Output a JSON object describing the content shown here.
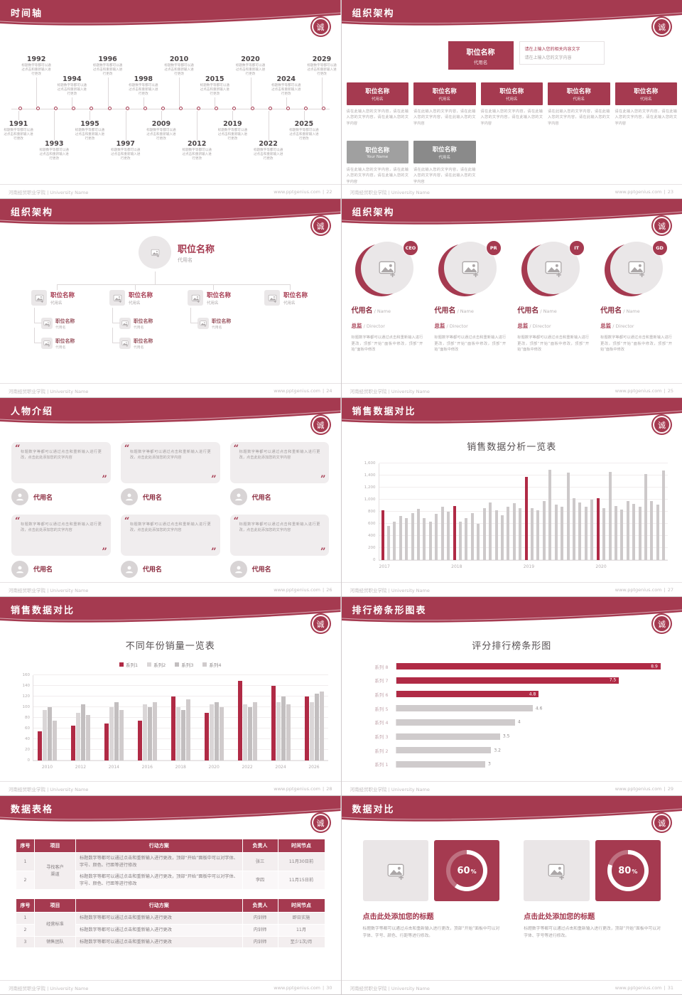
{
  "page": {
    "footer_left": "河南经贸职业学院 | University Name",
    "footer_site": "www.pptgenius.com",
    "badge_char": "诚"
  },
  "colors": {
    "primary": "#A53A50",
    "primary_dark": "#8D2F42",
    "bar_red": "#B02A45",
    "bar_gray": "#CDC9CA",
    "gray_box": "#A0A0A0",
    "gray_box_dark": "#8A8A8A"
  },
  "slides": {
    "timeline": {
      "title": "时间轴",
      "page_no": "22",
      "caption": "标题数字等都可以通过点击和重新输入进行更改",
      "events": [
        {
          "year": "1991",
          "side": "bottom",
          "far": false
        },
        {
          "year": "1992",
          "side": "top",
          "far": true
        },
        {
          "year": "1993",
          "side": "bottom",
          "far": true
        },
        {
          "year": "1994",
          "side": "top",
          "far": false
        },
        {
          "year": "1995",
          "side": "bottom",
          "far": false
        },
        {
          "year": "1996",
          "side": "top",
          "far": true
        },
        {
          "year": "1997",
          "side": "bottom",
          "far": true
        },
        {
          "year": "1998",
          "side": "top",
          "far": false
        },
        {
          "year": "2009",
          "side": "bottom",
          "far": false
        },
        {
          "year": "2010",
          "side": "top",
          "far": true
        },
        {
          "year": "2012",
          "side": "bottom",
          "far": true
        },
        {
          "year": "2015",
          "side": "top",
          "far": false
        },
        {
          "year": "2019",
          "side": "bottom",
          "far": false
        },
        {
          "year": "2020",
          "side": "top",
          "far": true
        },
        {
          "year": "2022",
          "side": "bottom",
          "far": true
        },
        {
          "year": "2024",
          "side": "top",
          "far": false
        },
        {
          "year": "2025",
          "side": "bottom",
          "far": false
        },
        {
          "year": "2029",
          "side": "top",
          "far": true
        }
      ]
    },
    "org1": {
      "title": "组织架构",
      "page_no": "23",
      "root_box": {
        "name": "职位名称",
        "sub": "代用名"
      },
      "root_note": [
        "请在上输入您的相关内容文字",
        "请在上输入您的文字内容"
      ],
      "box_desc": "请在此输入您的文字内容，请在此输入您的文字内容，请在此输入您的文字内容",
      "boxes": [
        {
          "name": "职位名称",
          "sub": "代用名"
        },
        {
          "name": "职位名称",
          "sub": "代用名"
        },
        {
          "name": "职位名称",
          "sub": "代用名"
        },
        {
          "name": "职位名称",
          "sub": "代用名"
        },
        {
          "name": "职位名称",
          "sub": "代用名"
        }
      ],
      "gray_boxes": [
        {
          "name": "职位名称",
          "sub": "Your Name",
          "color": "#A0A0A0"
        },
        {
          "name": "职位名称",
          "sub": "代用名",
          "color": "#8A8A8A"
        }
      ]
    },
    "org2": {
      "title": "组织架构",
      "page_no": "24",
      "root": {
        "name": "职位名称",
        "sub": "代用名"
      },
      "nodes": [
        {
          "name": "职位名称",
          "sub": "代用名"
        },
        {
          "name": "职位名称",
          "sub": "代用名"
        },
        {
          "name": "职位名称",
          "sub": "代用名"
        },
        {
          "name": "职位名称",
          "sub": "代用名"
        }
      ],
      "subnodes": [
        {
          "col": 0,
          "name": "职位名称",
          "sub": "代用名"
        },
        {
          "col": 0,
          "name": "职位名称",
          "sub": "代用名"
        },
        {
          "col": 1,
          "name": "职位名称",
          "sub": "代用名"
        },
        {
          "col": 1,
          "name": "职位名称",
          "sub": "代用名"
        },
        {
          "col": 2,
          "name": "职位名称",
          "sub": "代用名"
        }
      ]
    },
    "org3": {
      "title": "组织架构",
      "page_no": "25",
      "members": [
        {
          "badge": "CEO",
          "name": "代用名",
          "name_en": "/ Name",
          "role": "总监",
          "role_en": "/ Director",
          "desc": "标题数字等都可以通过点击和重新输入进行更改，顶部“开始”面板中修改，顶部“开始”面板中修改"
        },
        {
          "badge": "PR",
          "name": "代用名",
          "name_en": "/ Name",
          "role": "总监",
          "role_en": "/ Director",
          "desc": "标题数字等都可以通过点击和重新输入进行更改，顶部“开始”面板中修改，顶部“开始”面板中修改"
        },
        {
          "badge": "IT",
          "name": "代用名",
          "name_en": "/ Name",
          "role": "总监",
          "role_en": "/ Director",
          "desc": "标题数字等都可以通过点击和重新输入进行更改，顶部“开始”面板中修改，顶部“开始”面板中修改"
        },
        {
          "badge": "GD",
          "name": "代用名",
          "name_en": "/ Name",
          "role": "总监",
          "role_en": "/ Director",
          "desc": "标题数字等都可以通过点击和重新输入进行更改，顶部“开始”面板中修改，顶部“开始”面板中修改"
        }
      ]
    },
    "people": {
      "title": "人物介绍",
      "page_no": "26",
      "quote": "标题数字等都可以通过点击和重新输入进行更改，点击此处添加您的文字内容",
      "members": [
        "代用名",
        "代用名",
        "代用名",
        "代用名",
        "代用名",
        "代用名"
      ]
    },
    "sales1": {
      "title": "销售数据对比",
      "page_no": "27",
      "chart_title": "销售数据分析一览表",
      "y_ticks": [
        "0",
        "200",
        "400",
        "600",
        "800",
        "1,000",
        "1,200",
        "1,400",
        "1,600"
      ],
      "y_max": 1600,
      "groups": [
        "2017",
        "2018",
        "2019",
        "2020"
      ],
      "values": [
        820,
        560,
        640,
        730,
        690,
        780,
        850,
        700,
        640,
        760,
        880,
        800,
        900,
        640,
        700,
        780,
        600,
        860,
        950,
        820,
        740,
        880,
        940,
        860,
        1380,
        860,
        820,
        980,
        1500,
        920,
        880,
        1450,
        1020,
        950,
        880,
        1000,
        1020,
        860,
        1460,
        900,
        840,
        980,
        930,
        880,
        1420,
        980,
        920,
        1480
      ],
      "red_indexes": [
        0,
        12,
        24,
        36
      ]
    },
    "sales2": {
      "title": "销售数据对比",
      "page_no": "28",
      "chart_title": "不同年份销量一览表",
      "y_ticks": [
        "0",
        "20",
        "40",
        "60",
        "80",
        "100",
        "120",
        "140",
        "160"
      ],
      "y_max": 160,
      "categories": [
        "2010",
        "2012",
        "2014",
        "2016",
        "2018",
        "2020",
        "2022",
        "2024",
        "2026"
      ],
      "series": [
        {
          "name": "系列1",
          "color": "#B02A45",
          "values": [
            55,
            65,
            70,
            75,
            120,
            90,
            150,
            140,
            120
          ]
        },
        {
          "name": "系列2",
          "color": "#DAD6D7",
          "values": [
            95,
            90,
            100,
            105,
            100,
            105,
            105,
            110,
            110
          ]
        },
        {
          "name": "系列3",
          "color": "#C2BEBF",
          "values": [
            100,
            105,
            110,
            100,
            95,
            110,
            100,
            120,
            125
          ]
        },
        {
          "name": "系列4",
          "color": "#D0CBCC",
          "values": [
            75,
            85,
            95,
            110,
            115,
            100,
            110,
            105,
            130
          ]
        }
      ]
    },
    "ranking": {
      "title": "排行榜条形图表",
      "page_no": "29",
      "chart_title": "评分排行榜条形图",
      "x_max": 9,
      "bars": [
        {
          "label": "系列 8",
          "value": 8.9,
          "display": "8.9",
          "highlight": true
        },
        {
          "label": "系列 7",
          "value": 7.5,
          "display": "7.5",
          "highlight": true
        },
        {
          "label": "系列 6",
          "value": 4.8,
          "display": "4.8",
          "highlight": true
        },
        {
          "label": "系列 5",
          "value": 4.6,
          "display": "4.6",
          "highlight": false
        },
        {
          "label": "系列 4",
          "value": 4,
          "display": "4",
          "highlight": false
        },
        {
          "label": "系列 3",
          "value": 3.5,
          "display": "3.5",
          "highlight": false
        },
        {
          "label": "系列 2",
          "value": 3.2,
          "display": "3.2",
          "highlight": false
        },
        {
          "label": "系列 1",
          "value": 3,
          "display": "3",
          "highlight": false
        }
      ]
    },
    "tables": {
      "title": "数据表格",
      "page_no": "30",
      "headers": [
        "序号",
        "项目",
        "行动方案",
        "负责人",
        "时间节点"
      ],
      "table1": {
        "project": "寻找客户\n渠道",
        "rows": [
          {
            "no": "1",
            "plan": "标题数字等都可以通过点击和重新输入进行更改，顶部“开始”面板中可以对字体、字号、颜色、行距等进行修改",
            "owner": "张三",
            "time": "11月30日前"
          },
          {
            "no": "2",
            "plan": "标题数字等都可以通过点击和重新输入进行更改，顶部“开始”面板中可以对字体、字号、颜色、行距等进行修改",
            "owner": "李四",
            "time": "11月15日前"
          }
        ]
      },
      "table2": {
        "rows": [
          {
            "no": "1",
            "project": "经营标准",
            "project_span": 2,
            "plan": "标题数字等都可以通过点击和重新输入进行更改",
            "owner": "内训师",
            "time": "即日实施"
          },
          {
            "no": "2",
            "plan": "标题数字等都可以通过点击和重新输入进行更改",
            "owner": "内训师",
            "time": "11月"
          },
          {
            "no": "3",
            "project": "销售团队",
            "project_span": 1,
            "plan": "标题数字等都可以通过点击和重新输入进行更改",
            "owner": "内训师",
            "time": "至少1次/月"
          }
        ]
      }
    },
    "compare": {
      "title": "数据对比",
      "page_no": "31",
      "items": [
        {
          "percent": 60,
          "label": "60",
          "heading": "点击此处添加您的标题",
          "desc": "标题数字等都可以通过点击和重新输入进行更改，顶部“开始”面板中可以对字体、字号、颜色、行距等进行修改。"
        },
        {
          "percent": 80,
          "label": "80",
          "heading": "点击此处添加您的标题",
          "desc": "标题数字等都可以通过点击和重新输入进行更改，顶部“开始”面板中可以对字体、字号等进行修改。"
        }
      ]
    }
  },
  "chart_data": [
    {
      "type": "bar",
      "title": "销售数据分析一览表",
      "ylim": [
        0,
        1600
      ],
      "x_groups": [
        "2017",
        "2018",
        "2019",
        "2020"
      ],
      "values": [
        820,
        560,
        640,
        730,
        690,
        780,
        850,
        700,
        640,
        760,
        880,
        800,
        900,
        640,
        700,
        780,
        600,
        860,
        950,
        820,
        740,
        880,
        940,
        860,
        1380,
        860,
        820,
        980,
        1500,
        920,
        880,
        1450,
        1020,
        950,
        880,
        1000,
        1020,
        860,
        1460,
        900,
        840,
        980,
        930,
        880,
        1420,
        980,
        920,
        1480
      ],
      "highlight_indexes": [
        0,
        12,
        24,
        36
      ],
      "bar_color": "#CDC9CA",
      "highlight_color": "#B02A45",
      "grid": true
    },
    {
      "type": "bar",
      "title": "不同年份销量一览表",
      "categories": [
        "2010",
        "2012",
        "2014",
        "2016",
        "2018",
        "2020",
        "2022",
        "2024",
        "2026"
      ],
      "series": [
        {
          "name": "系列1",
          "values": [
            55,
            65,
            70,
            75,
            120,
            90,
            150,
            140,
            120
          ]
        },
        {
          "name": "系列2",
          "values": [
            95,
            90,
            100,
            105,
            100,
            105,
            105,
            110,
            110
          ]
        },
        {
          "name": "系列3",
          "values": [
            100,
            105,
            110,
            100,
            95,
            110,
            100,
            120,
            125
          ]
        },
        {
          "name": "系列4",
          "values": [
            75,
            85,
            95,
            110,
            115,
            100,
            110,
            105,
            130
          ]
        }
      ],
      "ylim": [
        0,
        160
      ],
      "legend_position": "top",
      "grid": true
    },
    {
      "type": "bar",
      "orientation": "horizontal",
      "title": "评分排行榜条形图",
      "categories": [
        "系列 8",
        "系列 7",
        "系列 6",
        "系列 5",
        "系列 4",
        "系列 3",
        "系列 2",
        "系列 1"
      ],
      "values": [
        8.9,
        7.5,
        4.8,
        4.6,
        4,
        3.5,
        3.2,
        3
      ],
      "xlim": [
        0,
        9
      ],
      "grid": false
    },
    {
      "type": "pie",
      "title": "数据对比",
      "labels": [
        "60%",
        "80%"
      ],
      "values": [
        60,
        80
      ]
    }
  ]
}
